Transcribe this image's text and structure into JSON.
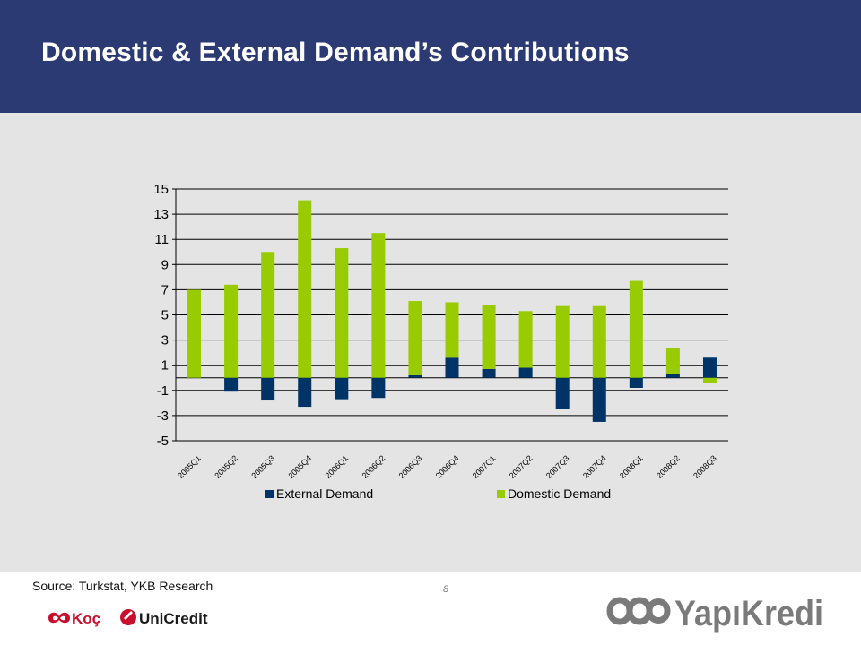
{
  "header": {
    "title": "Domestic & External Demand’s Contributions"
  },
  "footer": {
    "source": "Source: Turkstat, YKB Research",
    "page_number": "8",
    "logos": {
      "koc": "Koç",
      "unicredit": "UniCredit",
      "yapikredi": "YapıKredi"
    }
  },
  "colors": {
    "header_bg": "#2c3a73",
    "external": "#003366",
    "domestic": "#99cc00",
    "panel_bg": "#e4e4e4"
  },
  "chart_data": {
    "type": "bar",
    "stacked": true,
    "categories": [
      "2005Q1",
      "2005Q2",
      "2005Q3",
      "2005Q4",
      "2006Q1",
      "2006Q2",
      "2006Q3",
      "2006Q4",
      "2007Q1",
      "2007Q2",
      "2007Q3",
      "2007Q4",
      "2008Q1",
      "2008Q2",
      "2008Q3"
    ],
    "series": [
      {
        "name": "External Demand",
        "color": "#003366",
        "values": [
          0,
          -1.1,
          -1.8,
          -2.3,
          -1.7,
          -1.6,
          0.2,
          1.6,
          0.7,
          0.8,
          -2.5,
          -3.5,
          -0.8,
          0.3,
          1.6
        ]
      },
      {
        "name": "Domestic Demand",
        "color": "#99cc00",
        "values": [
          7.0,
          7.4,
          10.0,
          14.1,
          10.3,
          11.5,
          5.9,
          4.4,
          5.1,
          4.5,
          5.7,
          5.7,
          7.7,
          2.1,
          -0.4
        ]
      }
    ],
    "y_ticks": [
      "15",
      "13",
      "11",
      "9",
      "7",
      "5",
      "3",
      "1",
      "-1",
      "-3",
      "-5"
    ],
    "ylim": [
      -5,
      15
    ],
    "grid": true,
    "legend": "bottom",
    "title": "",
    "xlabel": "",
    "ylabel": ""
  }
}
